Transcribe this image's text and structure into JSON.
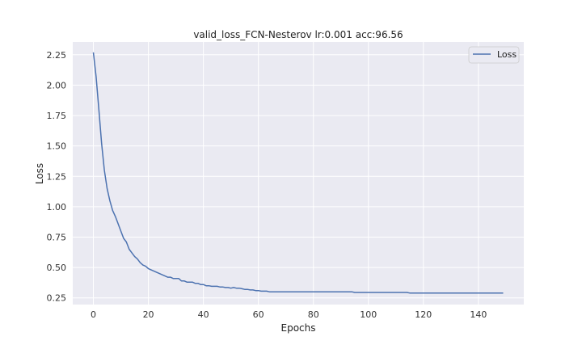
{
  "chart_data": {
    "type": "line",
    "title": "valid_loss_FCN-Nesterov lr:0.001 acc:96.56",
    "xlabel": "Epochs",
    "ylabel": "Loss",
    "xlim": [
      -7.5,
      156.5
    ],
    "ylim": [
      0.195,
      2.355
    ],
    "xticks": [
      0,
      20,
      40,
      60,
      80,
      100,
      120,
      140
    ],
    "yticks": [
      0.25,
      0.5,
      0.75,
      1.0,
      1.25,
      1.5,
      1.75,
      2.0,
      2.25
    ],
    "ytick_labels": [
      "0.25",
      "0.50",
      "0.75",
      "1.00",
      "1.25",
      "1.50",
      "1.75",
      "2.00",
      "2.25"
    ],
    "grid": true,
    "legend_position": "top-right",
    "colors": {
      "background": "#eaeaf2",
      "grid": "#ffffff",
      "line": "#4c72b0"
    },
    "series": [
      {
        "name": "Loss",
        "x": [
          0,
          1,
          2,
          3,
          4,
          5,
          6,
          7,
          8,
          9,
          10,
          11,
          12,
          13,
          14,
          15,
          16,
          17,
          18,
          19,
          20,
          21,
          22,
          23,
          24,
          25,
          26,
          27,
          28,
          29,
          30,
          31,
          32,
          33,
          34,
          35,
          36,
          37,
          38,
          39,
          40,
          41,
          42,
          43,
          44,
          45,
          46,
          47,
          48,
          49,
          50,
          51,
          52,
          53,
          54,
          55,
          56,
          57,
          58,
          59,
          60,
          61,
          62,
          63,
          64,
          65,
          66,
          67,
          68,
          69,
          70,
          71,
          72,
          73,
          74,
          75,
          76,
          77,
          78,
          79,
          80,
          81,
          82,
          83,
          84,
          85,
          86,
          87,
          88,
          89,
          90,
          91,
          92,
          93,
          94,
          95,
          96,
          97,
          98,
          99,
          100,
          101,
          102,
          103,
          104,
          105,
          106,
          107,
          108,
          109,
          110,
          111,
          112,
          113,
          114,
          115,
          116,
          117,
          118,
          119,
          120,
          121,
          122,
          123,
          124,
          125,
          126,
          127,
          128,
          129,
          130,
          131,
          132,
          133,
          134,
          135,
          136,
          137,
          138,
          139,
          140,
          141,
          142,
          143,
          144,
          145,
          146,
          147,
          148,
          149
        ],
        "values": [
          2.27,
          2.07,
          1.8,
          1.52,
          1.3,
          1.15,
          1.05,
          0.97,
          0.92,
          0.86,
          0.8,
          0.74,
          0.71,
          0.65,
          0.62,
          0.59,
          0.57,
          0.54,
          0.52,
          0.51,
          0.49,
          0.48,
          0.47,
          0.46,
          0.45,
          0.44,
          0.43,
          0.42,
          0.42,
          0.41,
          0.41,
          0.41,
          0.39,
          0.39,
          0.38,
          0.38,
          0.38,
          0.37,
          0.37,
          0.36,
          0.36,
          0.35,
          0.35,
          0.345,
          0.345,
          0.345,
          0.34,
          0.34,
          0.335,
          0.335,
          0.33,
          0.335,
          0.33,
          0.33,
          0.325,
          0.32,
          0.32,
          0.315,
          0.315,
          0.31,
          0.31,
          0.305,
          0.305,
          0.305,
          0.3,
          0.3,
          0.3,
          0.3,
          0.3,
          0.3,
          0.3,
          0.3,
          0.3,
          0.3,
          0.3,
          0.3,
          0.3,
          0.3,
          0.3,
          0.3,
          0.3,
          0.3,
          0.3,
          0.3,
          0.3,
          0.3,
          0.3,
          0.3,
          0.3,
          0.3,
          0.3,
          0.3,
          0.3,
          0.3,
          0.3,
          0.295,
          0.295,
          0.295,
          0.295,
          0.295,
          0.295,
          0.295,
          0.295,
          0.295,
          0.295,
          0.295,
          0.295,
          0.295,
          0.295,
          0.295,
          0.295,
          0.295,
          0.295,
          0.295,
          0.295,
          0.29,
          0.29,
          0.29,
          0.29,
          0.29,
          0.29,
          0.29,
          0.29,
          0.29,
          0.29,
          0.29,
          0.29,
          0.29,
          0.29,
          0.29,
          0.29,
          0.29,
          0.29,
          0.29,
          0.29,
          0.29,
          0.29,
          0.29,
          0.29,
          0.29,
          0.29,
          0.29,
          0.29,
          0.29,
          0.29,
          0.29,
          0.29,
          0.29,
          0.29,
          0.29
        ]
      }
    ]
  }
}
